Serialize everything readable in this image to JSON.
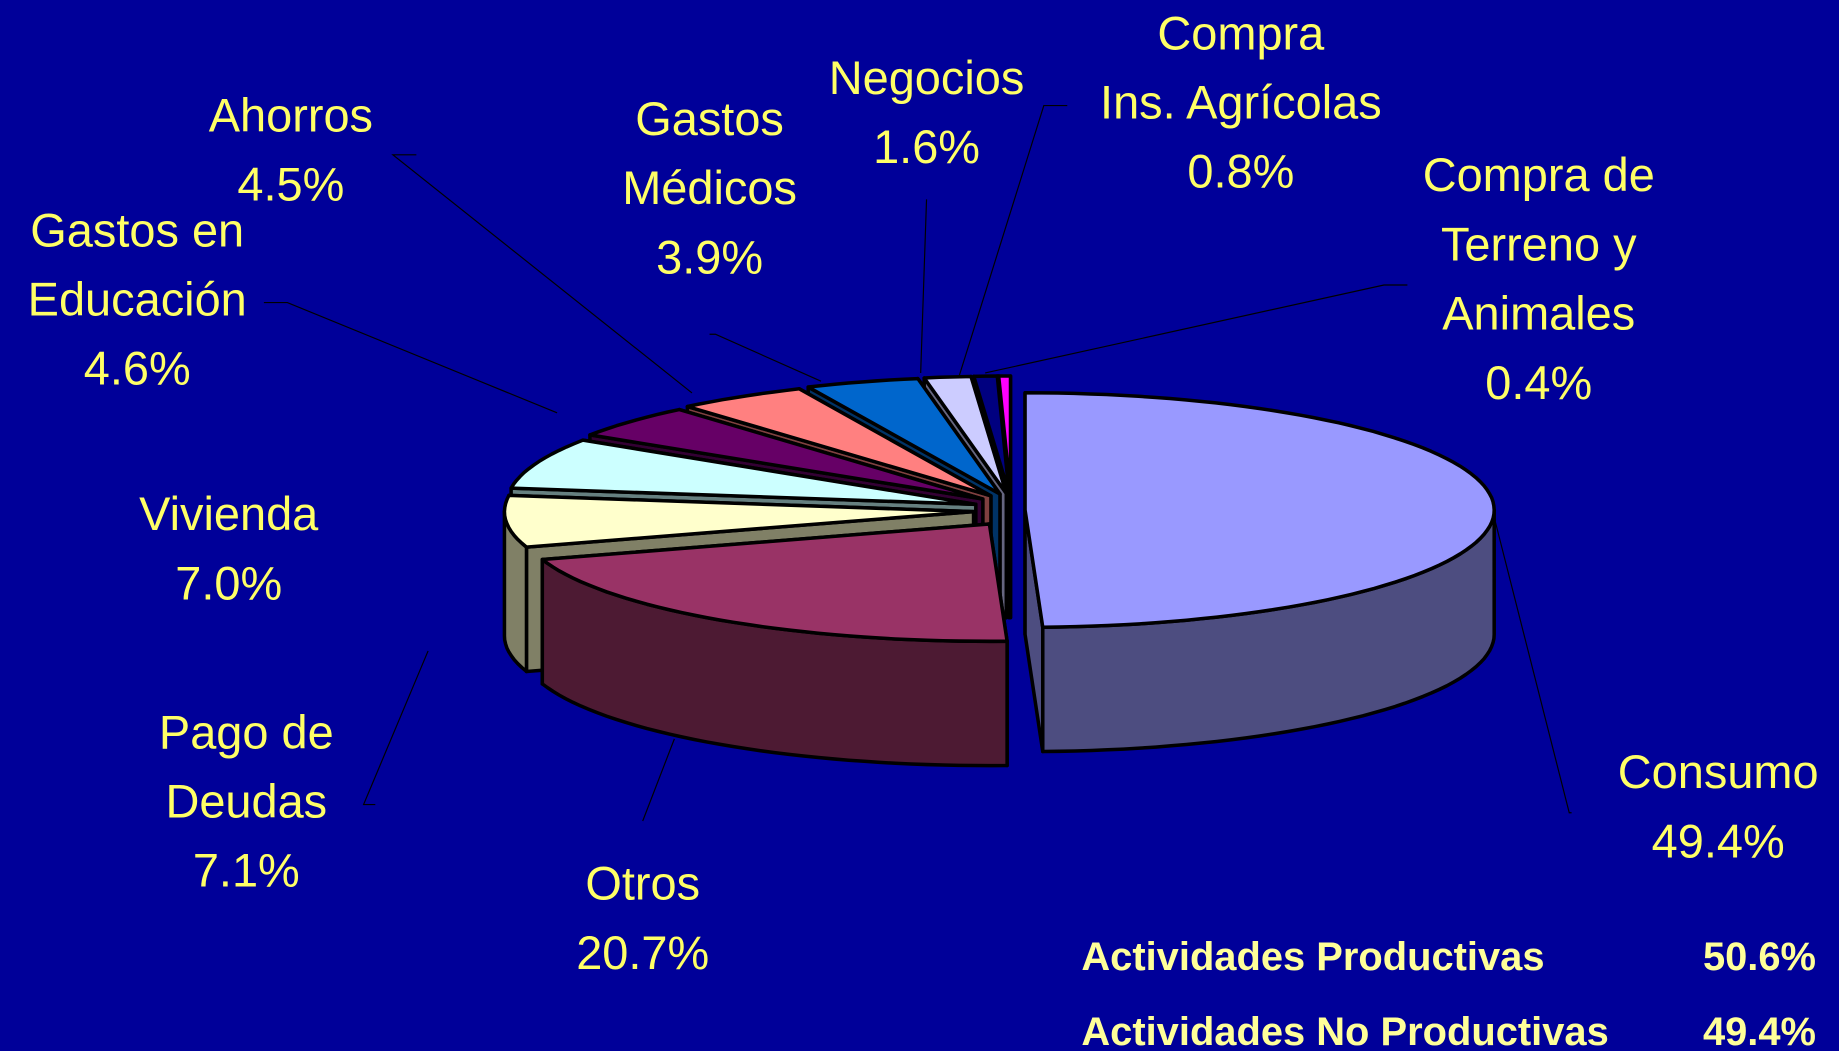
{
  "chart_data": {
    "type": "pie3d",
    "categories": [
      "Consumo",
      "Otros",
      "Pago de\nDeudas",
      "Vivienda",
      "Gastos en\nEducación",
      "Ahorros",
      "Gastos\nMédicos",
      "Negocios",
      "Compra\nIns. Agrícolas",
      "Compra de\nTerreno y\nAnimales"
    ],
    "values": [
      49.4,
      20.7,
      7.1,
      7.0,
      4.6,
      4.5,
      3.9,
      1.6,
      0.8,
      0.4
    ],
    "value_labels": [
      "49.4%",
      "20.7%",
      "7.1%",
      "7.0%",
      "4.6%",
      "4.5%",
      "3.9%",
      "1.6%",
      "0.8%",
      "0.4%"
    ],
    "colors": [
      "#9999ff",
      "#993366",
      "#ffffcc",
      "#ccffff",
      "#660066",
      "#ff8080",
      "#0066cc",
      "#ccccff",
      "#000080",
      "#ff00ff"
    ],
    "summary": [
      {
        "label": "Actividades Productivas",
        "value": 50.6,
        "value_label": "50.6%"
      },
      {
        "label": "Actividades No Productivas",
        "value": 49.4,
        "value_label": "49.4%"
      }
    ]
  }
}
